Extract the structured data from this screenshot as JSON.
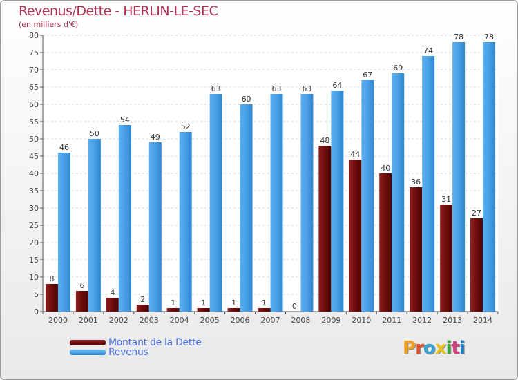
{
  "title": "Revenus/Dette - HERLIN-LE-SEC",
  "subtitle": "(en milliers d'€)",
  "legend": {
    "debt_label": "Montant de la Dette",
    "revenue_label": "Revenus"
  },
  "logo": {
    "text": "Proxiti"
  },
  "colors": {
    "debt": "#6b0a0a",
    "revenue": "#4aa0e6",
    "title": "#b03050",
    "legend_text": "#4a6fe0"
  },
  "chart_data": {
    "type": "bar",
    "categories": [
      "2000",
      "2001",
      "2002",
      "2003",
      "2004",
      "2005",
      "2006",
      "2007",
      "2008",
      "2009",
      "2010",
      "2011",
      "2012",
      "2013",
      "2014"
    ],
    "series": [
      {
        "name": "Montant de la Dette",
        "values": [
          8,
          6,
          4,
          2,
          1,
          1,
          1,
          1,
          0,
          48,
          44,
          40,
          36,
          31,
          27
        ]
      },
      {
        "name": "Revenus",
        "values": [
          46,
          50,
          54,
          49,
          52,
          63,
          60,
          63,
          63,
          64,
          67,
          69,
          74,
          78,
          78
        ]
      }
    ],
    "ylim": [
      0,
      80
    ],
    "yticks": [
      0,
      5,
      10,
      15,
      20,
      25,
      30,
      35,
      40,
      45,
      50,
      55,
      60,
      65,
      70,
      75,
      80
    ],
    "grid": true,
    "legend_position": "bottom-left"
  }
}
